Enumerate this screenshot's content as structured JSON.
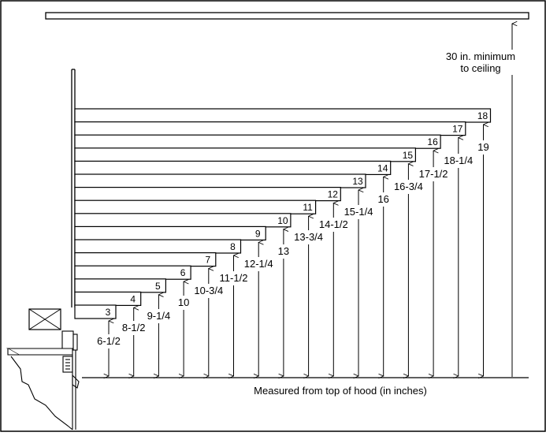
{
  "diagram": {
    "ceiling_note_line1": "30 in. minimum",
    "ceiling_note_line2": "to ceiling",
    "measure_caption": "Measured from top of hood (in inches)",
    "steps": [
      {
        "number": "3",
        "height": "6-1/2"
      },
      {
        "number": "4",
        "height": "8-1/2"
      },
      {
        "number": "5",
        "height": "9-1/4"
      },
      {
        "number": "6",
        "height": "10"
      },
      {
        "number": "7",
        "height": "10-3/4"
      },
      {
        "number": "8",
        "height": "11-1/2"
      },
      {
        "number": "9",
        "height": "12-1/4"
      },
      {
        "number": "10",
        "height": "13"
      },
      {
        "number": "11",
        "height": "13-3/4"
      },
      {
        "number": "12",
        "height": "14-1/2"
      },
      {
        "number": "13",
        "height": "15-1/4"
      },
      {
        "number": "14",
        "height": "16"
      },
      {
        "number": "15",
        "height": "16-3/4"
      },
      {
        "number": "16",
        "height": "17-1/2"
      },
      {
        "number": "17",
        "height": "18-1/4"
      },
      {
        "number": "18",
        "height": "19"
      }
    ]
  }
}
